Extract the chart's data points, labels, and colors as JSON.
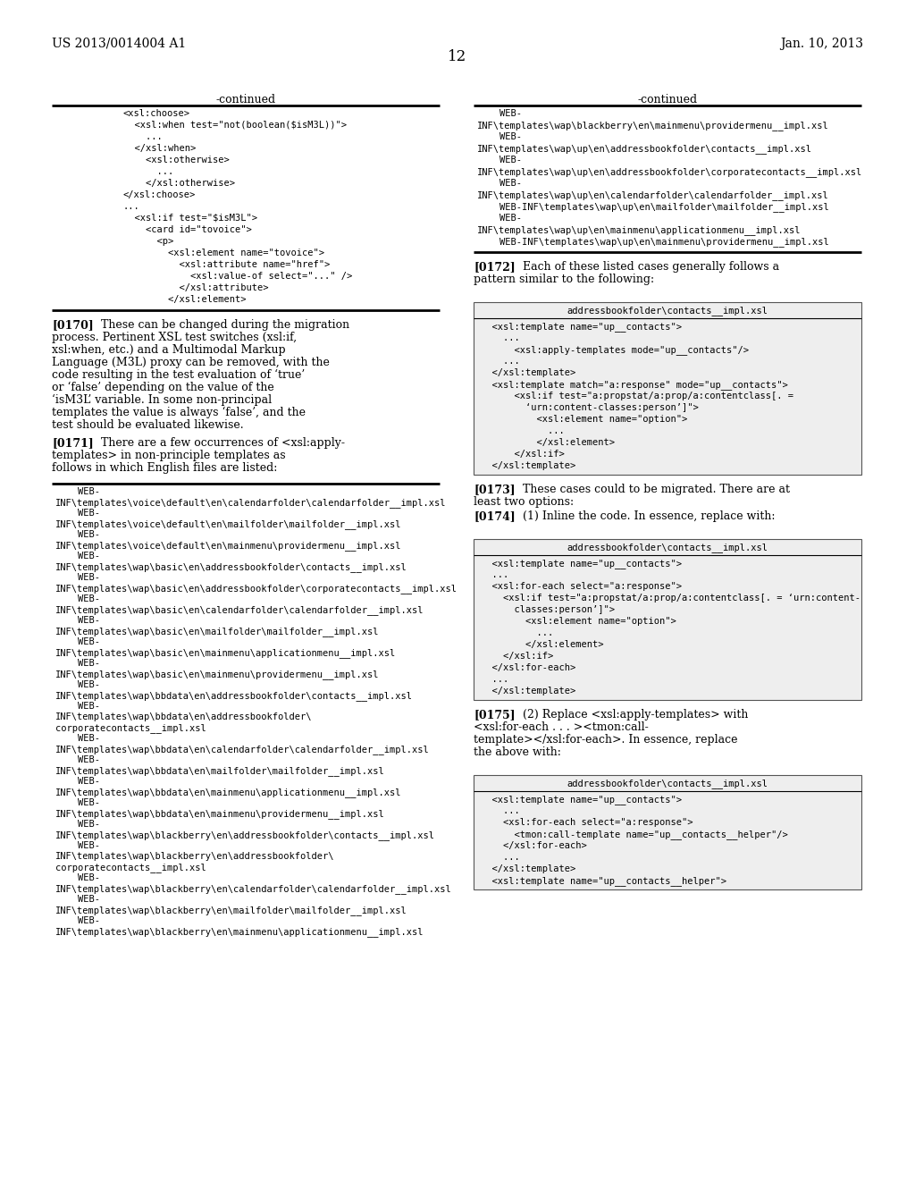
{
  "bg_color": "#ffffff",
  "header_left": "US 2013/0014004 A1",
  "header_right": "Jan. 10, 2013",
  "page_number": "12",
  "left_col_continued": "-continued",
  "right_col_continued": "-continued",
  "left_box1_code": [
    "<xsl:choose>",
    "  <xsl:when test=\"not(boolean($isM3L))\">",
    "    ...",
    "  </xsl:when>",
    "    <xsl:otherwise>",
    "      ...",
    "    </xsl:otherwise>",
    "</xsl:choose>",
    "...",
    "  <xsl:if test=\"$isM3L\">",
    "    <card id=\"tovoice\">",
    "      <p>",
    "        <xsl:element name=\"tovoice\">",
    "          <xsl:attribute name=\"href\">",
    "            <xsl:value-of select=\"...\" />",
    "          </xsl:attribute>",
    "        </xsl:element>"
  ],
  "right_box1_code": [
    "    WEB-",
    "INF\\templates\\wap\\blackberry\\en\\mainmenu\\providermenu__impl.xsl",
    "    WEB-",
    "INF\\templates\\wap\\up\\en\\addressbookfolder\\contacts__impl.xsl",
    "    WEB-",
    "INF\\templates\\wap\\up\\en\\addressbookfolder\\corporatecontacts__impl.xsl",
    "    WEB-",
    "INF\\templates\\wap\\up\\en\\calendarfolder\\calendarfolder__impl.xsl",
    "    WEB-INF\\templates\\wap\\up\\en\\mailfolder\\mailfolder__impl.xsl",
    "    WEB-",
    "INF\\templates\\wap\\up\\en\\mainmenu\\applicationmenu__impl.xsl",
    "    WEB-INF\\templates\\wap\\up\\en\\mainmenu\\providermenu__impl.xsl"
  ],
  "p0170": "[0170]",
  "p0170_text": "These can be changed during the migration process. Pertinent XSL test switches (xsl:if, xsl:when, etc.) and a Multimodal Markup Language (M3L) proxy can be removed, with the code resulting in the test evaluation of ‘true’ or ‘false’ depending on the value of the ‘isM3L’ variable. In some non-principal templates the value is always ‘false’, and the test should be evaluated likewise.",
  "p0171": "[0171]",
  "p0171_text": "There are a few occurrences of <xsl:apply-templates> in non-principle templates as follows in which English files are listed:",
  "left_box2_code": [
    "    WEB-",
    "INF\\templates\\voice\\default\\en\\calendarfolder\\calendarfolder__impl.xsl",
    "    WEB-",
    "INF\\templates\\voice\\default\\en\\mailfolder\\mailfolder__impl.xsl",
    "    WEB-",
    "INF\\templates\\voice\\default\\en\\mainmenu\\providermenu__impl.xsl",
    "    WEB-",
    "INF\\templates\\wap\\basic\\en\\addressbookfolder\\contacts__impl.xsl",
    "    WEB-",
    "INF\\templates\\wap\\basic\\en\\addressbookfolder\\corporatecontacts__impl.xsl",
    "    WEB-",
    "INF\\templates\\wap\\basic\\en\\calendarfolder\\calendarfolder__impl.xsl",
    "    WEB-",
    "INF\\templates\\wap\\basic\\en\\mailfolder\\mailfolder__impl.xsl",
    "    WEB-",
    "INF\\templates\\wap\\basic\\en\\mainmenu\\applicationmenu__impl.xsl",
    "    WEB-",
    "INF\\templates\\wap\\basic\\en\\mainmenu\\providermenu__impl.xsl",
    "    WEB-",
    "INF\\templates\\wap\\bbdata\\en\\addressbookfolder\\contacts__impl.xsl",
    "    WEB-",
    "INF\\templates\\wap\\bbdata\\en\\addressbookfolder\\",
    "corporatecontacts__impl.xsl",
    "    WEB-",
    "INF\\templates\\wap\\bbdata\\en\\calendarfolder\\calendarfolder__impl.xsl",
    "    WEB-",
    "INF\\templates\\wap\\bbdata\\en\\mailfolder\\mailfolder__impl.xsl",
    "    WEB-",
    "INF\\templates\\wap\\bbdata\\en\\mainmenu\\applicationmenu__impl.xsl",
    "    WEB-",
    "INF\\templates\\wap\\bbdata\\en\\mainmenu\\providermenu__impl.xsl",
    "    WEB-",
    "INF\\templates\\wap\\blackberry\\en\\addressbookfolder\\contacts__impl.xsl",
    "    WEB-",
    "INF\\templates\\wap\\blackberry\\en\\addressbookfolder\\",
    "corporatecontacts__impl.xsl",
    "    WEB-",
    "INF\\templates\\wap\\blackberry\\en\\calendarfolder\\calendarfolder__impl.xsl",
    "    WEB-",
    "INF\\templates\\wap\\blackberry\\en\\mailfolder\\mailfolder__impl.xsl",
    "    WEB-",
    "INF\\templates\\wap\\blackberry\\en\\mainmenu\\applicationmenu__impl.xsl"
  ],
  "p0172": "[0172]",
  "p0172_text": "Each of these listed cases generally follows a pattern similar to the following:",
  "right_box2_header": "addressbookfolder\\contacts__impl.xsl",
  "right_box2_code": [
    "  <xsl:template name=\"up__contacts\">",
    "    ...",
    "      <xsl:apply-templates mode=\"up__contacts\"/>",
    "    ...",
    "  </xsl:template>",
    "  <xsl:template match=\"a:response\" mode=\"up__contacts\">",
    "      <xsl:if test=\"a:propstat/a:prop/a:contentclass[. =",
    "        ‘urn:content-classes:person’]\">",
    "          <xsl:element name=\"option\">",
    "            ...",
    "          </xsl:element>",
    "      </xsl:if>",
    "  </xsl:template>"
  ],
  "p0173": "[0173]",
  "p0173_text": "These cases could to be migrated. There are at least two options:",
  "p0174": "[0174]",
  "p0174_text": "(1) Inline the code. In essence, replace with:",
  "right_box3_header": "addressbookfolder\\contacts__impl.xsl",
  "right_box3_code": [
    "  <xsl:template name=\"up__contacts\">",
    "  ...",
    "  <xsl:for-each select=\"a:response\">",
    "    <xsl:if test=\"a:propstat/a:prop/a:contentclass[. = ‘urn:content-",
    "      classes:person’]\">",
    "        <xsl:element name=\"option\">",
    "          ...",
    "        </xsl:element>",
    "    </xsl:if>",
    "  </xsl:for-each>",
    "  ...",
    "  </xsl:template>"
  ],
  "p0175": "[0175]",
  "p0175_text": "(2) Replace <xsl:apply-templates> with <xsl:for-each . . . ><tmon:call-template></xsl:for-each>. In essence, replace the above with:",
  "right_box4_header": "addressbookfolder\\contacts__impl.xsl",
  "right_box4_code": [
    "  <xsl:template name=\"up__contacts\">",
    "    ...",
    "    <xsl:for-each select=\"a:response\">",
    "      <tmon:call-template name=\"up__contacts__helper\"/>",
    "    </xsl:for-each>",
    "    ...",
    "  </xsl:template>",
    "  <xsl:template name=\"up__contacts__helper\">"
  ]
}
